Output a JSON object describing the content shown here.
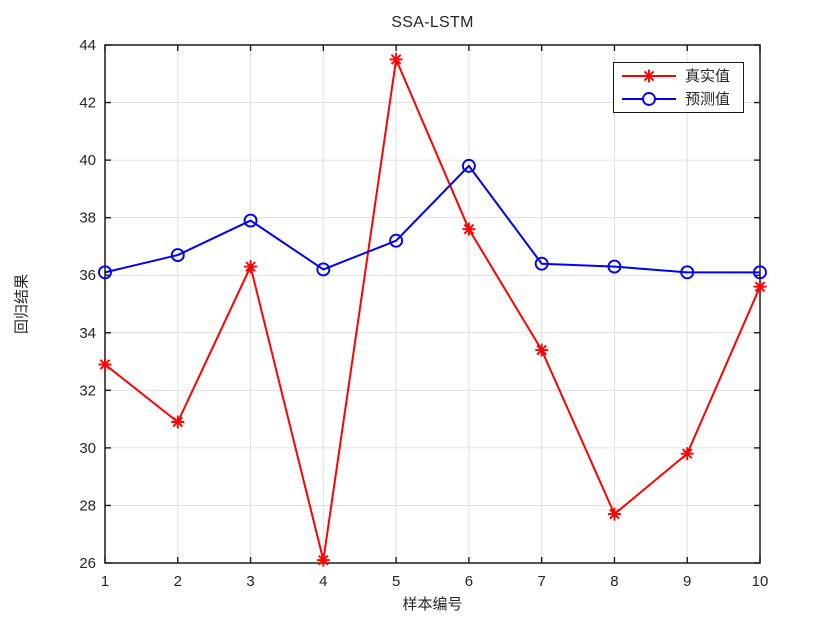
{
  "chart_data": {
    "type": "line",
    "title": "SSA-LSTM",
    "xlabel": "样本编号",
    "ylabel": "回归结果",
    "x": [
      1,
      2,
      3,
      4,
      5,
      6,
      7,
      8,
      9,
      10
    ],
    "series": [
      {
        "name": "真实值",
        "color": "#ff0000",
        "marker": "asterisk",
        "values": [
          32.9,
          30.9,
          36.3,
          26.1,
          43.5,
          37.6,
          33.4,
          27.7,
          29.8,
          35.6
        ]
      },
      {
        "name": "预测值",
        "color": "#0000ff",
        "marker": "circle",
        "values": [
          36.1,
          36.7,
          37.9,
          36.2,
          37.2,
          39.8,
          36.4,
          36.3,
          36.1,
          36.1
        ]
      }
    ],
    "xlim": [
      1,
      10
    ],
    "ylim": [
      26,
      44
    ],
    "xticks": [
      1,
      2,
      3,
      4,
      5,
      6,
      7,
      8,
      9,
      10
    ],
    "yticks": [
      26,
      28,
      30,
      32,
      34,
      36,
      38,
      40,
      42,
      44
    ],
    "grid": true,
    "legend_position": "top-right",
    "colors": {
      "grid": "#e0e0e0",
      "axis": "#1a1a1a",
      "text": "#262626",
      "background": "#ffffff"
    }
  }
}
